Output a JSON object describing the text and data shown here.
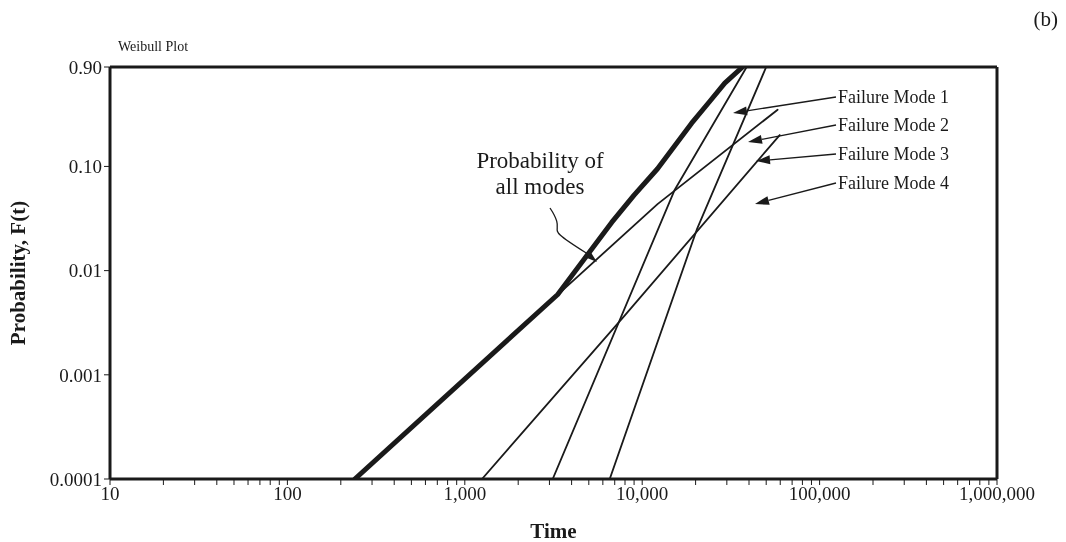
{
  "chart_data": {
    "type": "line",
    "title": "Weibull Plot",
    "annotations": [
      "(b)"
    ],
    "xlabel": "Time",
    "ylabel": "Probability, F(t)",
    "log": "xy",
    "legend": "top right",
    "grid": false,
    "marker": "none",
    "line_style": "solid",
    "xlim": [
      10,
      1000000
    ],
    "ylim": [
      0.0001,
      0.9
    ],
    "xticks": [
      10,
      {
        "value": 20,
        "label": null
      },
      {
        "value": 30,
        "label": null
      },
      {
        "value": 40,
        "label": null
      },
      {
        "value": 50,
        "label": null
      },
      {
        "value": 60,
        "label": null
      },
      {
        "value": 70,
        "label": null
      },
      {
        "value": 80,
        "label": null
      },
      {
        "value": 90,
        "label": null
      },
      100,
      {
        "value": 200,
        "label": null
      },
      {
        "value": 300,
        "label": null
      },
      {
        "value": 400,
        "label": null
      },
      {
        "value": 500,
        "label": null
      },
      {
        "value": 600,
        "label": null
      },
      {
        "value": 700,
        "label": null
      },
      {
        "value": 800,
        "label": null
      },
      {
        "value": 900,
        "label": null
      },
      {
        "value": 1000,
        "label": "1,000"
      },
      {
        "value": 2000,
        "label": null
      },
      {
        "value": 3000,
        "label": null
      },
      {
        "value": 4000,
        "label": null
      },
      {
        "value": 5000,
        "label": null
      },
      {
        "value": 6000,
        "label": null
      },
      {
        "value": 7000,
        "label": null
      },
      {
        "value": 8000,
        "label": null
      },
      {
        "value": 9000,
        "label": null
      },
      {
        "value": 10000,
        "label": "10,000"
      },
      {
        "value": 20000,
        "label": null
      },
      {
        "value": 30000,
        "label": null
      },
      {
        "value": 40000,
        "label": null
      },
      {
        "value": 50000,
        "label": null
      },
      {
        "value": 60000,
        "label": null
      },
      {
        "value": 70000,
        "label": null
      },
      {
        "value": 80000,
        "label": null
      },
      {
        "value": 90000,
        "label": null
      },
      {
        "value": 100000,
        "label": "100,000"
      },
      {
        "value": 200000,
        "label": null
      },
      {
        "value": 300000,
        "label": null
      },
      {
        "value": 400000,
        "label": null
      },
      {
        "value": 500000,
        "label": null
      },
      {
        "value": 600000,
        "label": null
      },
      {
        "value": 700000,
        "label": null
      },
      {
        "value": 800000,
        "label": null
      },
      {
        "value": 900000,
        "label": null
      },
      {
        "value": 1000000,
        "label": "1,000,000"
      }
    ],
    "yticks": [
      0.0001,
      0.001,
      0.01,
      {
        "value": 0.1,
        "label": "0.10"
      },
      {
        "value": 0.9,
        "label": "0.90"
      }
    ],
    "series": [
      {
        "name": "Probability of all modes",
        "color": "#1a1a1a",
        "x": [
          240,
          3340,
          6730,
          9000,
          12200,
          19000,
          24000,
          29200,
          36800
        ],
        "values": [
          0.0001,
          0.0059,
          0.029,
          0.053,
          0.095,
          0.26,
          0.42,
          0.63,
          0.9
        ]
      },
      {
        "name": "Failure Mode 1",
        "color": "#1a1a1a",
        "x": [
          3130,
          15200,
          38800
        ],
        "values": [
          0.0001,
          0.059,
          0.9
        ]
      },
      {
        "name": "Failure Mode 2",
        "color": "#1a1a1a",
        "x": [
          6560,
          20300,
          50000
        ],
        "values": [
          0.0001,
          0.0247,
          0.9
        ]
      },
      {
        "name": "Failure Mode 3",
        "color": "#1a1a1a",
        "x": [
          240,
          12200,
          58000
        ],
        "values": [
          0.0001,
          0.0435,
          0.35
        ]
      },
      {
        "name": "Failure Mode 4",
        "color": "#1a1a1a",
        "x": [
          1250,
          7960,
          59600
        ],
        "values": [
          0.0001,
          0.0037,
          0.2
        ]
      }
    ]
  }
}
